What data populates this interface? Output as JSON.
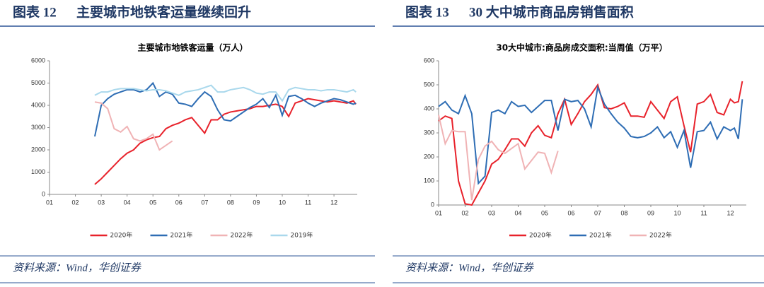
{
  "chart_data": [
    {
      "type": "line",
      "figure_label": "图表 12",
      "heading": "主要城市地铁客运量继续回升",
      "title": "主要城市地铁客运量（万人）",
      "source": "资料来源：Wind，华创证券",
      "legend": "bottom",
      "grid": false,
      "xlim": [
        1,
        12.9
      ],
      "xticks": [
        {
          "value": 1,
          "label": "01"
        },
        {
          "value": 2,
          "label": "02"
        },
        {
          "value": 3,
          "label": "03"
        },
        {
          "value": 4,
          "label": "04"
        },
        {
          "value": 5,
          "label": "05"
        },
        {
          "value": 6,
          "label": "06"
        },
        {
          "value": 7,
          "label": "07"
        },
        {
          "value": 8,
          "label": "08"
        },
        {
          "value": 9,
          "label": "09"
        },
        {
          "value": 10,
          "label": "10"
        },
        {
          "value": 11,
          "label": "11"
        },
        {
          "value": 12,
          "label": "12"
        }
      ],
      "ylim": [
        0,
        6000
      ],
      "yticks": [
        0,
        1000,
        2000,
        3000,
        4000,
        5000,
        6000
      ],
      "series": [
        {
          "name": "2020年",
          "color": "#e8222b",
          "x": [
            2.75,
            3,
            3.25,
            3.5,
            3.75,
            4,
            4.25,
            4.5,
            4.75,
            5,
            5.25,
            5.5,
            5.75,
            6,
            6.25,
            6.5,
            6.75,
            7,
            7.25,
            7.5,
            7.75,
            8,
            8.25,
            8.5,
            8.75,
            9,
            9.25,
            9.5,
            9.75,
            10,
            10.25,
            10.5,
            10.75,
            11,
            11.25,
            11.5,
            11.75,
            12,
            12.25,
            12.5,
            12.75,
            12.85
          ],
          "values": [
            450,
            700,
            1000,
            1300,
            1600,
            1850,
            2000,
            2300,
            2450,
            2550,
            2600,
            2950,
            3100,
            3200,
            3350,
            3450,
            3100,
            2750,
            3350,
            3350,
            3600,
            3700,
            3750,
            3800,
            3850,
            3950,
            3950,
            4000,
            4050,
            3950,
            3500,
            4100,
            4200,
            4300,
            4250,
            4200,
            4150,
            4200,
            4150,
            4100,
            4200,
            4050
          ]
        },
        {
          "name": "2021年",
          "color": "#2e6db4",
          "x": [
            2.75,
            3,
            3.25,
            3.5,
            3.75,
            4,
            4.25,
            4.5,
            4.75,
            5,
            5.25,
            5.5,
            5.75,
            6,
            6.25,
            6.5,
            6.75,
            7,
            7.25,
            7.5,
            7.75,
            8,
            8.25,
            8.5,
            8.75,
            9,
            9.25,
            9.5,
            9.75,
            10,
            10.25,
            10.5,
            10.75,
            11,
            11.25,
            11.5,
            11.75,
            12,
            12.25,
            12.5,
            12.75,
            12.85
          ],
          "values": [
            2600,
            4000,
            4300,
            4500,
            4600,
            4700,
            4700,
            4600,
            4700,
            5000,
            4400,
            4600,
            4500,
            4100,
            4050,
            3950,
            4300,
            4600,
            4400,
            3800,
            3350,
            3300,
            3500,
            3700,
            3900,
            4050,
            4300,
            3900,
            4450,
            3550,
            4400,
            4450,
            4300,
            4100,
            3950,
            4100,
            4200,
            4300,
            4250,
            4150,
            4050,
            4100
          ]
        },
        {
          "name": "2022年",
          "color": "#f0b3b5",
          "x": [
            2.75,
            3,
            3.25,
            3.5,
            3.75,
            4,
            4.25,
            4.5,
            4.75,
            5,
            5.25,
            5.5,
            5.75
          ],
          "values": [
            4150,
            4100,
            3850,
            2950,
            2800,
            3050,
            2500,
            2400,
            2500,
            2700,
            2000,
            2200,
            2400
          ]
        },
        {
          "name": "2019年",
          "color": "#a9d8ec",
          "x": [
            2.75,
            3,
            3.25,
            3.5,
            3.75,
            4,
            4.25,
            4.5,
            4.75,
            5,
            5.25,
            5.5,
            5.75,
            6,
            6.25,
            6.5,
            6.75,
            7,
            7.25,
            7.5,
            7.75,
            8,
            8.25,
            8.5,
            8.75,
            9,
            9.25,
            9.5,
            9.75,
            10,
            10.25,
            10.5,
            10.75,
            11,
            11.25,
            11.5,
            11.75,
            12,
            12.25,
            12.5,
            12.75,
            12.85
          ],
          "values": [
            4450,
            4600,
            4600,
            4700,
            4750,
            4750,
            4750,
            4700,
            4650,
            4700,
            4700,
            4650,
            4550,
            4450,
            4600,
            4650,
            4700,
            4800,
            4900,
            4600,
            4600,
            4700,
            4750,
            4800,
            4700,
            4550,
            4500,
            4600,
            4600,
            4200,
            4700,
            4800,
            4750,
            4700,
            4700,
            4650,
            4700,
            4700,
            4650,
            4600,
            4700,
            4600
          ]
        }
      ]
    },
    {
      "type": "line",
      "figure_label": "图表 13",
      "heading": "30 大中城市商品房销售面积",
      "title": "30大中城市:商品房成交面积:当周值（万平）",
      "source": "资料来源：Wind，华创证券",
      "legend": "bottom",
      "grid": false,
      "xlim": [
        1,
        12.6
      ],
      "xticks": [
        {
          "value": 1,
          "label": "01"
        },
        {
          "value": 2,
          "label": "02"
        },
        {
          "value": 3,
          "label": "03"
        },
        {
          "value": 4,
          "label": "04"
        },
        {
          "value": 5,
          "label": "05"
        },
        {
          "value": 6,
          "label": "06"
        },
        {
          "value": 7,
          "label": "07"
        },
        {
          "value": 8,
          "label": "08"
        },
        {
          "value": 9,
          "label": "09"
        },
        {
          "value": 10,
          "label": "10"
        },
        {
          "value": 11,
          "label": "11"
        },
        {
          "value": 12,
          "label": "12"
        }
      ],
      "ylim": [
        0,
        600
      ],
      "yticks": [
        0,
        100,
        200,
        300,
        400,
        500,
        600
      ],
      "series": [
        {
          "name": "2020年",
          "color": "#e8222b",
          "x": [
            1,
            1.25,
            1.5,
            1.75,
            2,
            2.25,
            2.5,
            2.75,
            3,
            3.25,
            3.5,
            3.75,
            4,
            4.25,
            4.5,
            4.75,
            5,
            5.25,
            5.5,
            5.75,
            6,
            6.25,
            6.5,
            6.75,
            7,
            7.25,
            7.5,
            7.75,
            8,
            8.25,
            8.5,
            8.75,
            9,
            9.25,
            9.5,
            9.75,
            10,
            10.25,
            10.5,
            10.75,
            11,
            11.25,
            11.5,
            11.75,
            12,
            12.15,
            12.3,
            12.45
          ],
          "values": [
            350,
            370,
            360,
            100,
            5,
            0,
            50,
            100,
            170,
            190,
            230,
            275,
            275,
            245,
            300,
            330,
            290,
            280,
            380,
            440,
            335,
            380,
            430,
            460,
            500,
            405,
            400,
            410,
            425,
            370,
            370,
            365,
            430,
            395,
            360,
            430,
            450,
            330,
            220,
            420,
            430,
            460,
            385,
            375,
            440,
            425,
            430,
            515
          ]
        },
        {
          "name": "2021年",
          "color": "#2e6db4",
          "x": [
            1,
            1.25,
            1.5,
            1.75,
            2,
            2.25,
            2.5,
            2.75,
            3,
            3.25,
            3.5,
            3.75,
            4,
            4.25,
            4.5,
            4.75,
            5,
            5.25,
            5.5,
            5.75,
            6,
            6.25,
            6.5,
            6.75,
            7,
            7.25,
            7.5,
            7.75,
            8,
            8.25,
            8.5,
            8.75,
            9,
            9.25,
            9.5,
            9.75,
            10,
            10.25,
            10.5,
            10.75,
            11,
            11.25,
            11.5,
            11.75,
            12,
            12.15,
            12.3,
            12.45
          ],
          "values": [
            410,
            430,
            395,
            380,
            455,
            380,
            90,
            120,
            385,
            395,
            380,
            430,
            410,
            415,
            385,
            410,
            435,
            435,
            310,
            440,
            430,
            435,
            400,
            325,
            490,
            420,
            380,
            345,
            320,
            285,
            280,
            285,
            300,
            325,
            280,
            305,
            240,
            310,
            155,
            305,
            310,
            345,
            275,
            325,
            310,
            320,
            275,
            440
          ]
        },
        {
          "name": "2022年",
          "color": "#f0b3b5",
          "x": [
            1,
            1.25,
            1.5,
            1.75,
            2,
            2.25,
            2.5,
            2.75,
            3,
            3.25,
            3.5,
            3.75,
            4,
            4.25,
            4.5,
            4.75,
            5,
            5.25,
            5.5
          ],
          "values": [
            375,
            255,
            310,
            305,
            305,
            20,
            190,
            245,
            265,
            230,
            215,
            235,
            255,
            150,
            185,
            220,
            215,
            135,
            225
          ]
        }
      ]
    }
  ]
}
